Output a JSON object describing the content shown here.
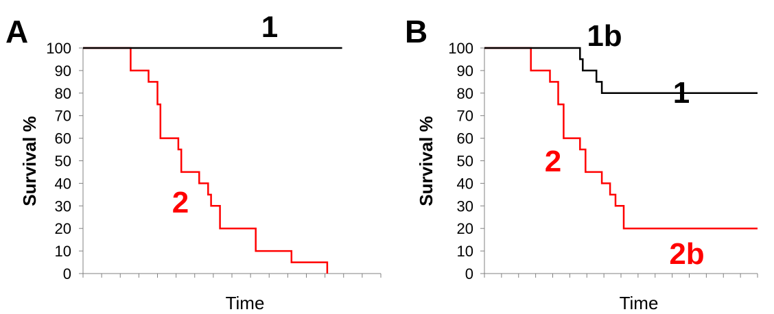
{
  "chart_data": [
    {
      "panel": "A",
      "type": "line",
      "step": true,
      "xlabel": "Time",
      "ylabel": "Survival %",
      "ylim": [
        0,
        100
      ],
      "yticks": [
        0,
        10,
        20,
        30,
        40,
        50,
        60,
        70,
        80,
        90,
        100
      ],
      "xlim": [
        0,
        100
      ],
      "grid": false,
      "series": [
        {
          "name": "1",
          "color": "#000000",
          "points": [
            [
              0,
              100
            ],
            [
              87,
              100
            ]
          ]
        },
        {
          "name": "2",
          "color": "#ff0000",
          "points": [
            [
              0,
              100
            ],
            [
              16,
              100
            ],
            [
              16,
              90
            ],
            [
              22,
              90
            ],
            [
              22,
              85
            ],
            [
              25,
              85
            ],
            [
              25,
              75
            ],
            [
              26,
              75
            ],
            [
              26,
              60
            ],
            [
              32,
              60
            ],
            [
              32,
              55
            ],
            [
              33,
              55
            ],
            [
              33,
              45
            ],
            [
              39,
              45
            ],
            [
              39,
              40
            ],
            [
              42,
              40
            ],
            [
              42,
              35
            ],
            [
              43,
              35
            ],
            [
              43,
              30
            ],
            [
              46,
              30
            ],
            [
              46,
              20
            ],
            [
              58,
              20
            ],
            [
              58,
              10
            ],
            [
              70,
              10
            ],
            [
              70,
              5
            ],
            [
              82,
              5
            ],
            [
              82,
              0
            ]
          ]
        }
      ]
    },
    {
      "panel": "B",
      "type": "line",
      "step": true,
      "xlabel": "Time",
      "ylabel": "Survival %",
      "ylim": [
        0,
        100
      ],
      "yticks": [
        0,
        10,
        20,
        30,
        40,
        50,
        60,
        70,
        80,
        90,
        100
      ],
      "xlim": [
        0,
        100
      ],
      "grid": false,
      "annotations": [
        "1b",
        "2b"
      ],
      "series": [
        {
          "name": "1",
          "color": "#000000",
          "points": [
            [
              0,
              100
            ],
            [
              35,
              100
            ],
            [
              35,
              95
            ],
            [
              36,
              95
            ],
            [
              36,
              90
            ],
            [
              41,
              90
            ],
            [
              41,
              85
            ],
            [
              43,
              85
            ],
            [
              43,
              80
            ],
            [
              48,
              80
            ],
            [
              48,
              80
            ],
            [
              100,
              80
            ]
          ]
        },
        {
          "name": "2",
          "color": "#ff0000",
          "points": [
            [
              0,
              100
            ],
            [
              17,
              100
            ],
            [
              17,
              90
            ],
            [
              24,
              90
            ],
            [
              24,
              85
            ],
            [
              27,
              85
            ],
            [
              27,
              75
            ],
            [
              29,
              75
            ],
            [
              29,
              60
            ],
            [
              35,
              60
            ],
            [
              35,
              55
            ],
            [
              37,
              55
            ],
            [
              37,
              45
            ],
            [
              43,
              45
            ],
            [
              43,
              40
            ],
            [
              46,
              40
            ],
            [
              46,
              35
            ],
            [
              48,
              35
            ],
            [
              48,
              30
            ],
            [
              51,
              30
            ],
            [
              51,
              20
            ],
            [
              100,
              20
            ]
          ]
        }
      ]
    }
  ]
}
